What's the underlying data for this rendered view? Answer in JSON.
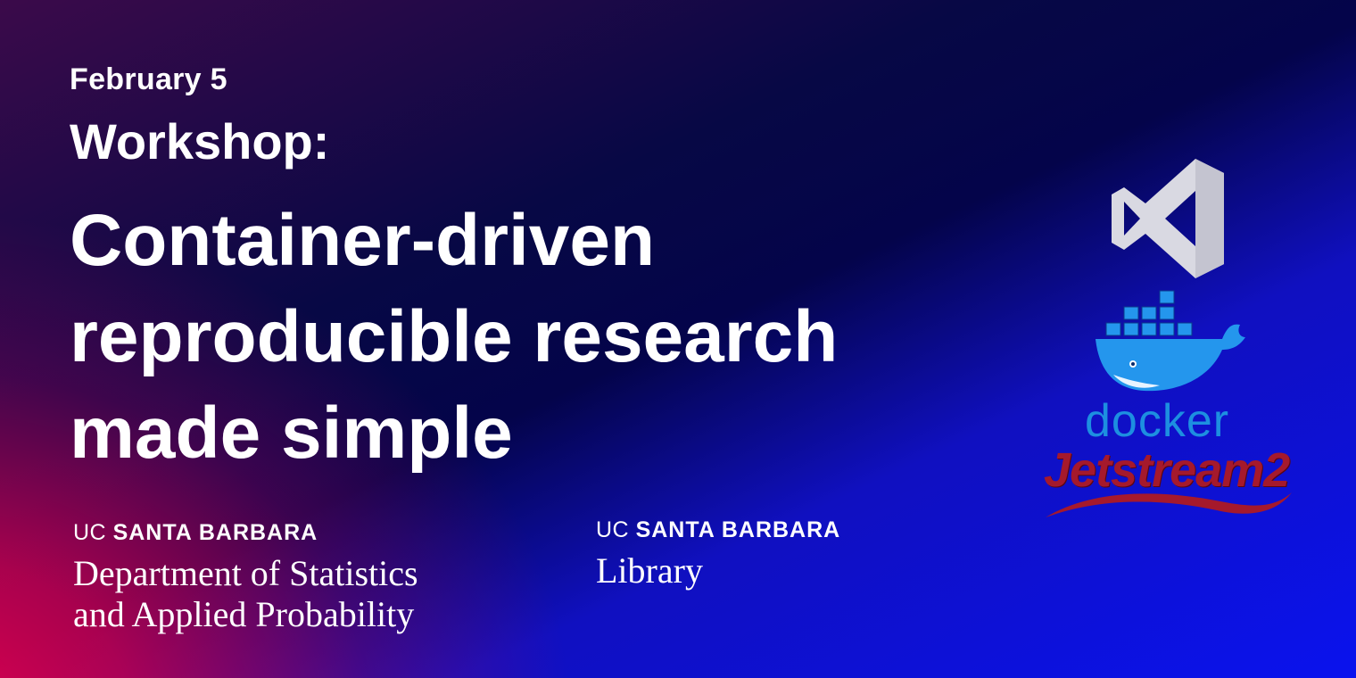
{
  "event": {
    "date": "February 5",
    "kicker": "Workshop:",
    "title_lines": [
      "Container-driven",
      "reproducible research",
      "made simple"
    ]
  },
  "affiliations": [
    {
      "uc": "UC",
      "campus": "SANTA BARBARA",
      "unit_lines": [
        "Department of Statistics",
        "and Applied Probability"
      ]
    },
    {
      "uc": "UC",
      "campus": "SANTA BARBARA",
      "unit_lines": [
        "Library"
      ]
    }
  ],
  "logos": {
    "vscode": {
      "icon": "vscode-logo-icon"
    },
    "docker": {
      "icon": "docker-whale-icon",
      "wordmark": "docker",
      "color": "#1d8fe0"
    },
    "jetstream": {
      "wordmark": "Jetstream2",
      "color": "#a5192c"
    }
  },
  "colors": {
    "text": "#ffffff",
    "bg_left": "#e0004f",
    "bg_mid": "#04044a",
    "bg_right": "#0a12ee"
  }
}
